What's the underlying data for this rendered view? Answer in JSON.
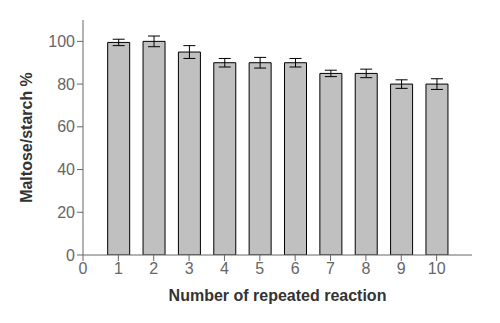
{
  "chart_data": {
    "type": "bar",
    "x": [
      1,
      2,
      3,
      4,
      5,
      6,
      7,
      8,
      9,
      10
    ],
    "values": [
      99.5,
      100.0,
      95.0,
      90.0,
      90.0,
      90.0,
      85.0,
      85.0,
      80.0,
      80.0
    ],
    "errors": [
      1.5,
      2.5,
      3.0,
      2.0,
      2.5,
      2.0,
      1.5,
      2.0,
      2.0,
      2.5
    ],
    "color": "#c0c0c0",
    "xlabel": "Number of repeated reaction",
    "ylabel": "Maltose/starch %",
    "xlim": [
      0,
      11
    ],
    "ylim": [
      0,
      110
    ],
    "xticks": [
      0,
      1,
      2,
      3,
      4,
      5,
      6,
      7,
      8,
      9,
      10
    ],
    "yticks": [
      0,
      20,
      40,
      60,
      80,
      100
    ],
    "grid": false
  }
}
